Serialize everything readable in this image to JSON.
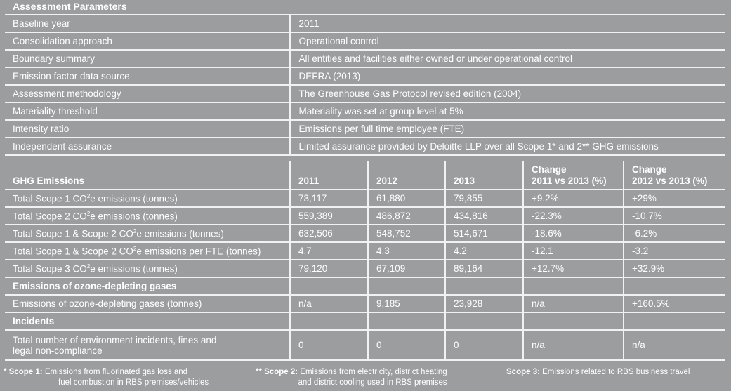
{
  "assessment": {
    "title": "Assessment Parameters",
    "rows": [
      {
        "label": "Baseline year",
        "value": "2011"
      },
      {
        "label": "Consolidation approach",
        "value": "Operational control"
      },
      {
        "label": "Boundary summary",
        "value": "All entities and facilities either owned or under operational control"
      },
      {
        "label": "Emission factor data source",
        "value": "DEFRA (2013)"
      },
      {
        "label": "Assessment methodology",
        "value": "The Greenhouse Gas Protocol revised edition (2004)"
      },
      {
        "label": "Materiality threshold",
        "value": "Materiality was set at group level at 5%"
      },
      {
        "label": "Intensity ratio",
        "value": "Emissions per full time employee (FTE)"
      },
      {
        "label": "Independent assurance",
        "value": "Limited assurance provided by Deloitte LLP over all Scope 1* and 2** GHG emissions"
      }
    ]
  },
  "ghg": {
    "headers": [
      "GHG Emissions",
      "2011",
      "2012",
      "2013",
      "Change",
      "2011 vs 2013 (%)",
      "Change",
      "2012 vs 2013 (%)"
    ],
    "rows": [
      {
        "pre": "Total Scope 1 CO",
        "sup": "2",
        "post": "e emissions (tonnes)",
        "v": [
          "73,117",
          "61,880",
          "79,855",
          "+9.2%",
          "+29%"
        ]
      },
      {
        "pre": "Total Scope 2 CO",
        "sup": "2",
        "post": "e emissions (tonnes)",
        "v": [
          "559,389",
          "486,872",
          "434,816",
          "-22.3%",
          "-10.7%"
        ]
      },
      {
        "pre": "Total Scope 1 & Scope 2 CO",
        "sup": "2",
        "post": "e emissions (tonnes)",
        "v": [
          "632,506",
          "548,752",
          "514,671",
          "-18.6%",
          "-6.2%"
        ]
      },
      {
        "pre": "Total Scope 1 & Scope 2 CO",
        "sup": "2",
        "post": "e emissions per FTE (tonnes)",
        "v": [
          "4.7",
          "4.3",
          "4.2",
          "-12.1",
          "-3.2"
        ]
      },
      {
        "pre": "Total Scope 3 CO",
        "sup": "2",
        "post": "e emissions (tonnes)",
        "v": [
          "79,120",
          "67,109",
          "89,164",
          "+12.7%",
          "+32.9%"
        ]
      }
    ],
    "ozone_section": "Emissions of ozone-depleting gases",
    "ozone_row": {
      "label": "Emissions of ozone-depleting gases (tonnes)",
      "v": [
        "n/a",
        "9,185",
        "23,928",
        "n/a",
        "+160.5%"
      ]
    },
    "incidents_section": "Incidents",
    "incidents_row": {
      "label1": "Total number of environment incidents, fines and",
      "label2": "legal non-compliance",
      "v": [
        "0",
        "0",
        "0",
        "n/a",
        "n/a"
      ]
    }
  },
  "footnotes": {
    "s1_key": "* Scope 1:",
    "s1_a": "Emissions from fluorinated gas loss and",
    "s1_b": "fuel combustion in RBS premises/vehicles",
    "s2_key": "** Scope 2:",
    "s2_a": "Emissions from electricity, district heating",
    "s2_b": "and district cooling used in RBS premises",
    "s3_key": "Scope 3:",
    "s3_a": "Emissions related to RBS business travel"
  }
}
